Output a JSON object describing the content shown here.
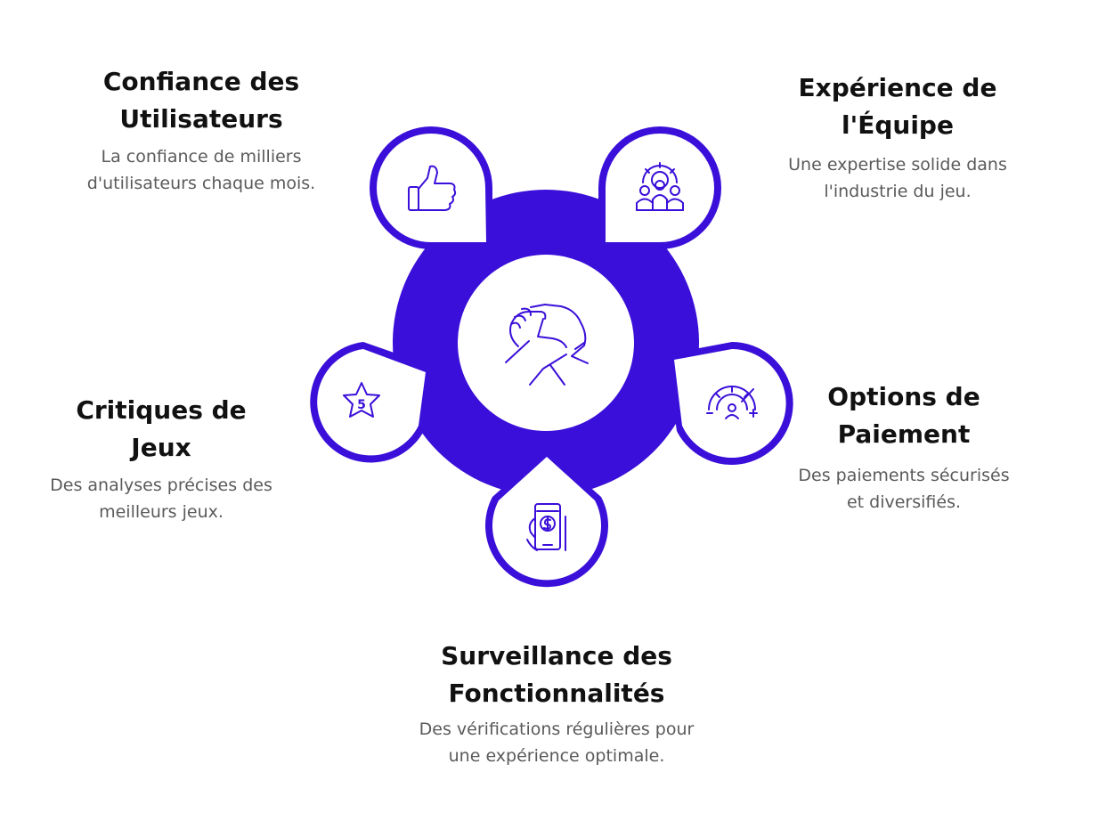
{
  "colors": {
    "primary": "#3a0fd9",
    "white": "#ffffff",
    "title": "#111111",
    "description": "#5a5a5a"
  },
  "center": {
    "icon": "arm-wrestling-handshake-icon"
  },
  "nodes": [
    {
      "id": "trust",
      "icon": "thumbs-up-icon",
      "title_lines": [
        "Confiance des",
        "Utilisateurs"
      ],
      "desc_lines": [
        "La confiance de milliers",
        "d'utilisateurs chaque mois."
      ]
    },
    {
      "id": "team",
      "icon": "team-gear-icon",
      "title_lines": [
        "Expérience de",
        "l'Équipe"
      ],
      "desc_lines": [
        "Une expertise solide dans",
        "l'industrie du jeu."
      ]
    },
    {
      "id": "reviews",
      "icon": "star-rating-icon",
      "icon_text": "5",
      "title_lines": [
        "Critiques de",
        "Jeux"
      ],
      "desc_lines": [
        "Des analyses précises des",
        "meilleurs jeux."
      ]
    },
    {
      "id": "payment",
      "icon": "gauge-user-icon",
      "title_lines": [
        "Options de",
        "Paiement"
      ],
      "desc_lines": [
        "Des paiements sécurisés",
        "et diversifiés."
      ]
    },
    {
      "id": "monitoring",
      "icon": "mobile-payment-icon",
      "title_lines": [
        "Surveillance des",
        "Fonctionnalités"
      ],
      "desc_lines": [
        "Des vérifications régulières pour",
        "une expérience optimale."
      ]
    }
  ]
}
